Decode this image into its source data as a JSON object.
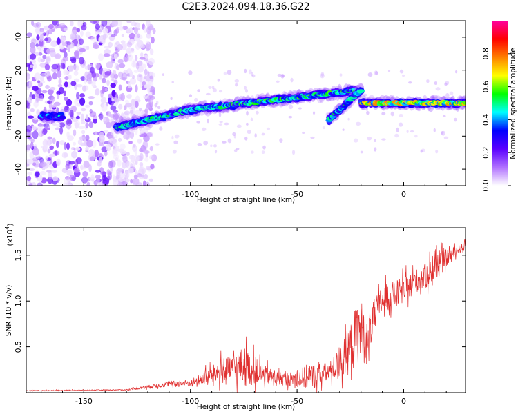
{
  "title": "C2E3.2024.094.18.36.G22",
  "chart_data": [
    {
      "type": "heatmap",
      "xlabel": "Height of straight line (km)",
      "ylabel": "Frequency (Hz)",
      "xlim": [
        -177,
        29
      ],
      "ylim": [
        -50,
        50
      ],
      "x_ticks": [
        -150,
        -100,
        -50,
        0
      ],
      "y_ticks": [
        -40,
        -20,
        0,
        20,
        40
      ],
      "colorbar": {
        "label": "Normalized spectral amplitude",
        "range": [
          0,
          1
        ],
        "ticks": [
          "0.0",
          "0.2",
          "0.4",
          "0.6",
          "0.8"
        ],
        "colors": [
          "#ffffff",
          "#b070ff",
          "#5a00ff",
          "#0000ff",
          "#00ffff",
          "#00ff00",
          "#ffff00",
          "#ff8000",
          "#ff0000",
          "#ff00a0"
        ]
      },
      "tracks": [
        {
          "x": [
            -170,
            -160
          ],
          "freq": [
            -8,
            -8
          ],
          "amplitude": 0.5
        },
        {
          "x": [
            -135,
            -100
          ],
          "freq": [
            -15,
            -4
          ],
          "amplitude": 0.55
        },
        {
          "x": [
            -100,
            -20
          ],
          "freq": [
            -4,
            8
          ],
          "amplitude": 0.6
        },
        {
          "x": [
            -35,
            -20
          ],
          "freq": [
            -10,
            8
          ],
          "amplitude": 0.55
        },
        {
          "x": [
            -20,
            29
          ],
          "freq": [
            0,
            0
          ],
          "amplitude": 0.8
        }
      ],
      "noise_region_x": [
        -177,
        -125
      ]
    },
    {
      "type": "line",
      "xlabel": "Height of straight line (km)",
      "ylabel": "SNR (10 * v/v)",
      "y_scale_label": "(x10",
      "y_scale_exponent": "4",
      "xlim": [
        -177,
        29
      ],
      "ylim": [
        0,
        1.8
      ],
      "x_ticks": [
        -150,
        -100,
        -50,
        0
      ],
      "y_ticks": [
        "0.5",
        "1.0",
        "1.5"
      ],
      "y_tick_values": [
        0.5,
        1.0,
        1.5
      ],
      "color": "#e03030",
      "envelope": {
        "x": [
          -177,
          -130,
          -120,
          -110,
          -100,
          -95,
          -90,
          -85,
          -80,
          -75,
          -70,
          -65,
          -60,
          -55,
          -50,
          -45,
          -40,
          -35,
          -30,
          -25,
          -22,
          -20,
          -17,
          -15,
          -10,
          -5,
          0,
          5,
          10,
          15,
          20,
          25,
          29
        ],
        "base": [
          0.02,
          0.03,
          0.06,
          0.09,
          0.1,
          0.14,
          0.18,
          0.22,
          0.25,
          0.26,
          0.22,
          0.18,
          0.15,
          0.14,
          0.14,
          0.15,
          0.18,
          0.22,
          0.3,
          0.45,
          0.6,
          0.65,
          0.5,
          0.75,
          1.0,
          1.05,
          1.1,
          1.2,
          1.25,
          1.35,
          1.45,
          1.55,
          1.6
        ],
        "amp": [
          0.01,
          0.01,
          0.04,
          0.06,
          0.08,
          0.12,
          0.2,
          0.28,
          0.3,
          0.45,
          0.3,
          0.2,
          0.16,
          0.14,
          0.18,
          0.3,
          0.25,
          0.2,
          0.35,
          0.55,
          0.7,
          0.7,
          0.45,
          0.4,
          0.3,
          0.3,
          0.28,
          0.25,
          0.28,
          0.3,
          0.2,
          0.1,
          0.08
        ]
      }
    }
  ]
}
